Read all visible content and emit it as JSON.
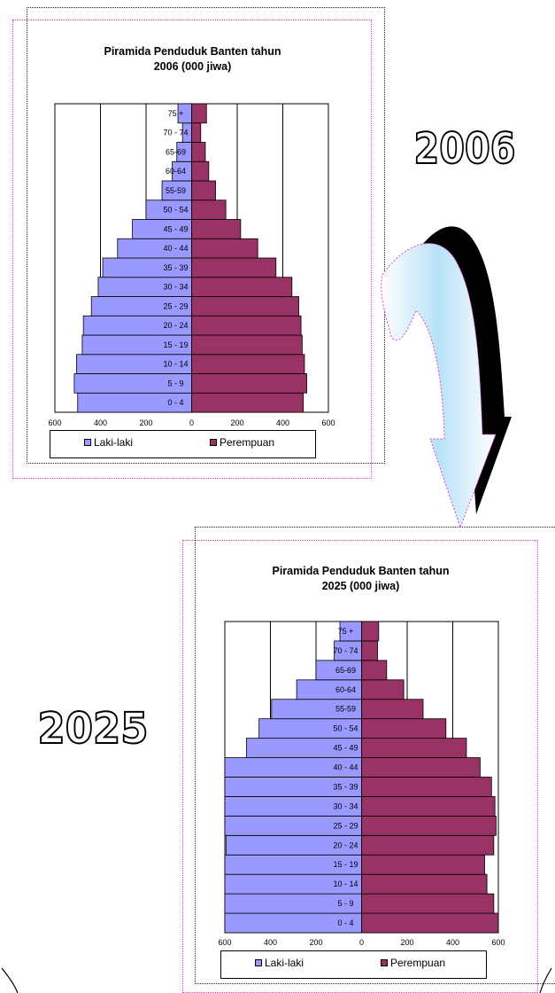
{
  "big_labels": {
    "year_top": "2006",
    "year_bottom": "2025"
  },
  "colors": {
    "male": "#9999ff",
    "female": "#993366",
    "frame_pink": "#e23cd6",
    "arrow_dark": "#000000"
  },
  "chart_data": [
    {
      "type": "bar",
      "title_line1": "Piramida Penduduk Banten   tahun",
      "title_line2": "2006 (000 jiwa)",
      "categories": [
        "0 - 4",
        "5 - 9",
        "10 - 14",
        "15 - 19",
        "20 - 24",
        "25 - 29",
        "30 - 34",
        "35 - 39",
        "40 - 44",
        "45 - 49",
        "50 - 54",
        "55-59",
        "60-64",
        "65-69",
        "70 - 74",
        "75 +"
      ],
      "series": [
        {
          "name": "Laki-laki",
          "values": [
            500,
            515,
            505,
            480,
            475,
            440,
            410,
            390,
            325,
            260,
            200,
            130,
            85,
            65,
            40,
            60
          ]
        },
        {
          "name": "Perempuan",
          "values": [
            490,
            505,
            495,
            485,
            480,
            470,
            440,
            370,
            290,
            215,
            150,
            105,
            75,
            60,
            40,
            65
          ]
        }
      ],
      "xlim": [
        -600,
        600
      ],
      "x_ticks": [
        "600",
        "400",
        "200",
        "0",
        "200",
        "400",
        "600"
      ],
      "legend": [
        "Laki-laki",
        "Perempuan"
      ],
      "legend_position": "bottom"
    },
    {
      "type": "bar",
      "title_line1": "Piramida Penduduk Banten   tahun",
      "title_line2": "2025 (000 jiwa)",
      "categories": [
        "0 - 4",
        "5 - 9",
        "10 - 14",
        "15 - 19",
        "20 - 24",
        "25 - 29",
        "30 - 34",
        "35 - 39",
        "40 - 44",
        "45 - 49",
        "50 - 54",
        "55-59",
        "60-64",
        "65-69",
        "70 - 74",
        "75 +"
      ],
      "series": [
        {
          "name": "Laki-laki",
          "values": [
            625,
            625,
            630,
            605,
            595,
            640,
            640,
            630,
            605,
            505,
            450,
            395,
            285,
            200,
            120,
            95
          ]
        },
        {
          "name": "Perempuan",
          "values": [
            600,
            580,
            550,
            540,
            580,
            590,
            585,
            570,
            520,
            460,
            370,
            270,
            185,
            110,
            70,
            75
          ]
        }
      ],
      "xlim": [
        -600,
        600
      ],
      "x_ticks": [
        "600",
        "400",
        "200",
        "0",
        "200",
        "400",
        "600"
      ],
      "legend": [
        "Laki-laki",
        "Perempuan"
      ],
      "legend_position": "bottom"
    }
  ]
}
